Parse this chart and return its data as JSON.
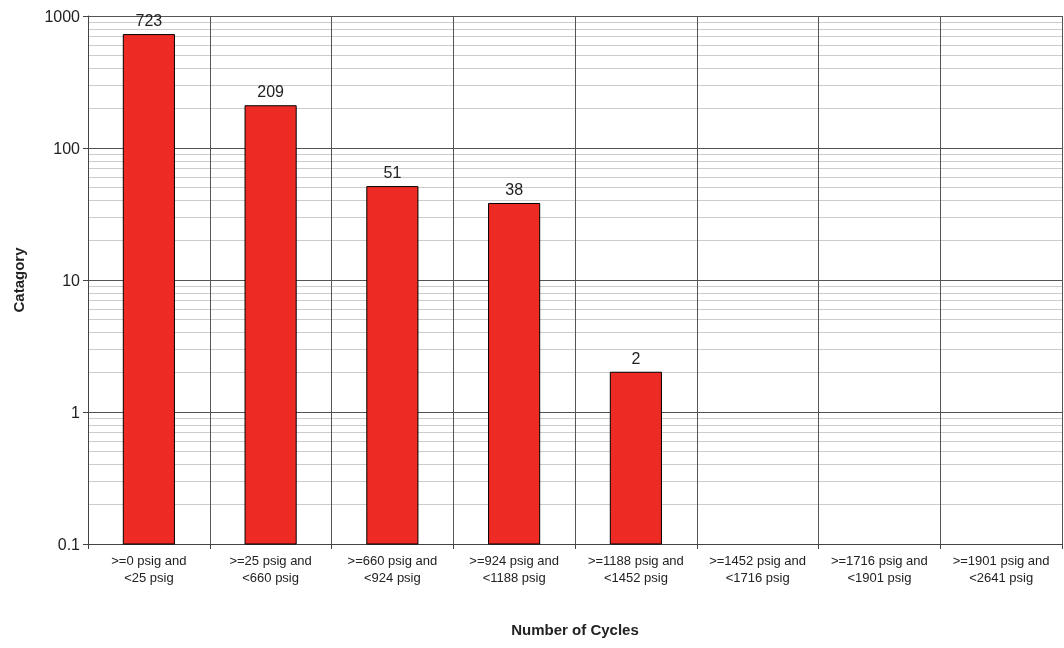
{
  "chart_data": {
    "type": "bar",
    "xlabel": "Number of Cycles",
    "ylabel": "Catagory",
    "categories": [
      ">=0 psig and\n<25 psig",
      ">=25 psig and\n<660 psig",
      ">=660 psig and\n<924 psig",
      ">=924 psig and\n<1188 psig",
      ">=1188 psig and\n<1452 psig",
      ">=1452 psig and\n<1716 psig",
      ">=1716 psig and\n<1901 psig",
      ">=1901 psig and\n<2641 psig"
    ],
    "values": [
      723,
      209,
      51,
      38,
      2,
      null,
      null,
      null
    ],
    "color": "#ee2a24",
    "log": "y",
    "ylim": [
      0.1,
      1000
    ],
    "yticks": [
      0.1,
      1,
      10,
      100,
      1000
    ],
    "grid": true,
    "data_labels": true
  }
}
